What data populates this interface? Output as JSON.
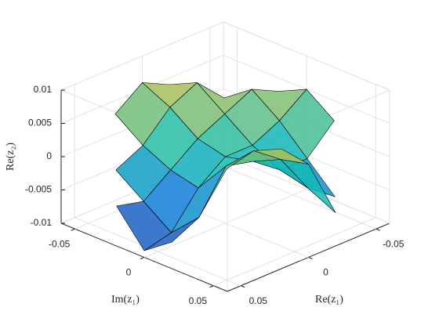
{
  "chart_data": {
    "type": "surface",
    "x": [
      -0.06,
      -0.04,
      -0.02,
      0,
      0.02,
      0.04,
      0.06
    ],
    "y": [
      -0.06,
      -0.04,
      -0.02,
      0,
      0.02,
      0.04,
      0.06
    ],
    "z": [
      [
        null,
        null,
        0.004,
        0.006,
        0.003,
        null,
        null
      ],
      [
        null,
        0.002,
        0.006,
        0.004,
        0.0,
        -0.002,
        null
      ],
      [
        0.003,
        0.005,
        0.003,
        0.001,
        -0.002,
        -0.005,
        -0.004
      ],
      [
        0.005,
        0.002,
        0.0,
        0.0,
        -0.003,
        -0.008,
        -0.009
      ],
      [
        0.002,
        -0.002,
        -0.002,
        0.001,
        0.002,
        -0.004,
        -0.006
      ],
      [
        null,
        -0.006,
        -0.003,
        0.003,
        0.006,
        0.005,
        null
      ],
      [
        null,
        null,
        -0.005,
        0.004,
        0.008,
        null,
        null
      ]
    ],
    "xlim": [
      -0.06,
      0.06
    ],
    "ylim": [
      -0.06,
      0.06
    ],
    "zlim": [
      -0.01,
      0.01
    ],
    "xticks": [
      -0.05,
      0,
      0.05
    ],
    "yticks": [
      -0.05,
      0,
      0.05
    ],
    "zticks": [
      -0.01,
      -0.005,
      0,
      0.005,
      0.01
    ],
    "xlabel": "Re(z₁)",
    "ylabel": "Im(z₁)",
    "zlabel": "Re(z₂)",
    "grid": true
  }
}
